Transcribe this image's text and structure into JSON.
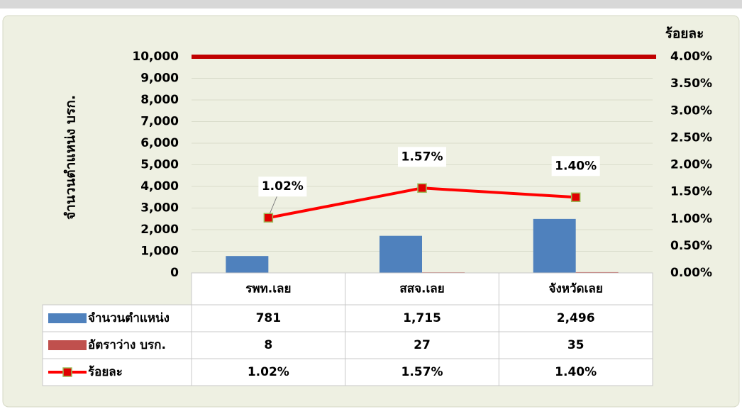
{
  "chart_data": {
    "type": "bar",
    "y_label": "จำนวนตำแหน่ง บรก.",
    "y2_label": "ร้อยละ",
    "categories": [
      "รพท.เลย",
      "สสจ.เลย",
      "จังหวัดเลย"
    ],
    "series": [
      {
        "name": "จำนวนตำแหน่ง",
        "color": "#4f81bd",
        "type": "bar",
        "values": [
          781,
          1715,
          2496
        ],
        "value_labels": [
          "781",
          "1,715",
          "2,496"
        ]
      },
      {
        "name": "อัตราว่าง บรก.",
        "color": "#c0504d",
        "type": "bar",
        "values": [
          8,
          27,
          35
        ],
        "value_labels": [
          "8",
          "27",
          "35"
        ]
      },
      {
        "name": "ร้อยละ",
        "color": "#ff0000",
        "type": "line",
        "axis": "y2",
        "values": [
          1.02,
          1.57,
          1.4
        ],
        "value_labels": [
          "1.02%",
          "1.57%",
          "1.40%"
        ]
      }
    ],
    "ylim": [
      0,
      10000
    ],
    "yticks": [
      0,
      {
        "value": 1000,
        "label": "1,000"
      },
      {
        "value": 2000,
        "label": "2,000"
      },
      {
        "value": 3000,
        "label": "3,000"
      },
      {
        "value": 4000,
        "label": "4,000"
      },
      {
        "value": 5000,
        "label": "5,000"
      },
      {
        "value": 6000,
        "label": "6,000"
      },
      {
        "value": 7000,
        "label": "7,000"
      },
      {
        "value": 8000,
        "label": "8,000"
      },
      {
        "value": 9000,
        "label": "9,000"
      },
      {
        "value": 10000,
        "label": "10,000"
      }
    ],
    "y2lim": [
      0,
      4
    ],
    "y2ticks": [
      {
        "value": 0,
        "label": "0.00%"
      },
      {
        "value": 0.5,
        "label": "0.50%"
      },
      {
        "value": 1,
        "label": "1.00%"
      },
      {
        "value": 1.5,
        "label": "1.50%"
      },
      {
        "value": 2,
        "label": "2.00%"
      },
      {
        "value": 2.5,
        "label": "2.50%"
      },
      {
        "value": 3,
        "label": "3.00%"
      },
      {
        "value": 3.5,
        "label": "3.50%"
      },
      {
        "value": 4,
        "label": "4.00%"
      }
    ],
    "grid": true,
    "data_table": true
  }
}
